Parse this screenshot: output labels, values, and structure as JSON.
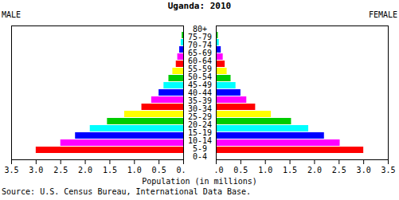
{
  "chart_data": {
    "type": "bar",
    "orientation": "horizontal",
    "title": "Uganda: 2010",
    "categories": [
      "0-4",
      "5-9",
      "10-14",
      "15-19",
      "20-24",
      "25-29",
      "30-34",
      "35-39",
      "40-44",
      "45-49",
      "50-54",
      "55-59",
      "60-64",
      "65-69",
      "70-74",
      "75-79",
      "80+"
    ],
    "series": [
      {
        "name": "MALE",
        "values": [
          3.0,
          2.5,
          2.2,
          1.9,
          1.55,
          1.2,
          0.85,
          0.65,
          0.5,
          0.4,
          0.3,
          0.22,
          0.15,
          0.12,
          0.08,
          0.05,
          0.03
        ]
      },
      {
        "name": "FEMALE",
        "values": [
          3.0,
          2.52,
          2.2,
          1.88,
          1.53,
          1.12,
          0.8,
          0.62,
          0.5,
          0.4,
          0.3,
          0.22,
          0.18,
          0.14,
          0.1,
          0.06,
          0.04
        ]
      }
    ],
    "colors": [
      "#ff0000",
      "#ff00ff",
      "#0000ff",
      "#00ffff",
      "#00cc00",
      "#ffff00",
      "#ff0000",
      "#ff00ff",
      "#0000ff",
      "#00ffff",
      "#00cc00",
      "#ffff00",
      "#ff0000",
      "#ff00ff",
      "#0000ff",
      "#00ffff",
      "#00cc00"
    ],
    "xlabel": "Population (in millions)",
    "xlim": [
      0,
      3.5
    ],
    "xticks": [
      {
        "value": 0,
        "label": "0.0"
      },
      {
        "value": 0.5,
        "label": "0.5"
      },
      {
        "value": 1,
        "label": "1.0"
      },
      {
        "value": 1.5,
        "label": "1.5"
      },
      {
        "value": 2,
        "label": "2.0"
      },
      {
        "value": 2.5,
        "label": "2.5"
      },
      {
        "value": 3,
        "label": "3.0"
      },
      {
        "value": 3.5,
        "label": "3.5"
      }
    ],
    "grid": false,
    "source": "Source: U.S. Census Bureau, International Data Base."
  }
}
